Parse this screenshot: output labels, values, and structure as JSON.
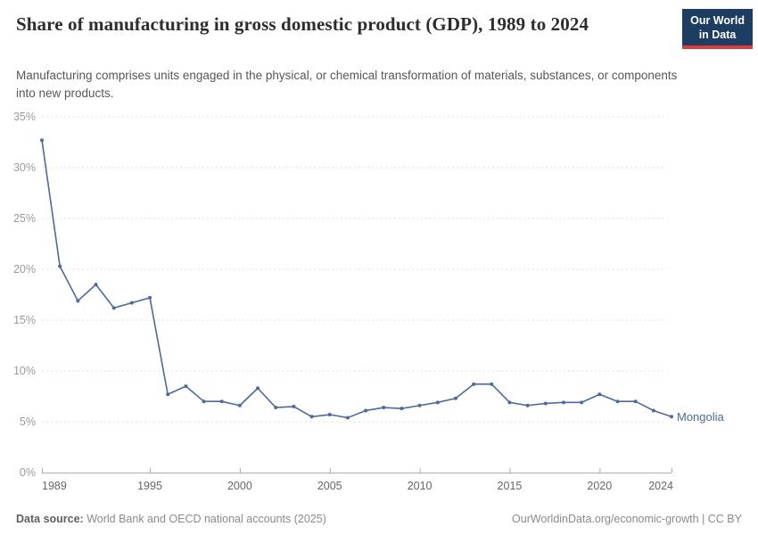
{
  "header": {
    "title": "Share of manufacturing in gross domestic product (GDP), 1989 to 2024",
    "subtitle": "Manufacturing comprises units engaged in the physical, or chemical transformation of materials, substances, or components into new products.",
    "logo_line1": "Our World",
    "logo_line2": "in Data"
  },
  "colors": {
    "line": "#4c6a9c",
    "grid": "#dddddd",
    "axis": "#ababab",
    "ytick": "#9a9a9a",
    "xtick": "#666666",
    "logo_bg": "#1d3d63",
    "logo_red": "#dc3e3e"
  },
  "chart_data": {
    "type": "line",
    "title": "Share of manufacturing in gross domestic product (GDP), 1989 to 2024",
    "xlabel": "",
    "ylabel": "",
    "xlim": [
      1989,
      2024
    ],
    "ylim": [
      0,
      35
    ],
    "grid": "horizontal-dashed",
    "legend_position": "end-of-line",
    "xticks": [
      1989,
      1995,
      2000,
      2005,
      2010,
      2015,
      2020,
      2024
    ],
    "yticks": [
      0,
      5,
      10,
      15,
      20,
      25,
      30,
      35
    ],
    "ytick_labels": [
      "0%",
      "5%",
      "10%",
      "15%",
      "20%",
      "25%",
      "30%",
      "35%"
    ],
    "series": [
      {
        "name": "Mongolia",
        "color": "#4c6a9c",
        "x": [
          1989,
          1990,
          1991,
          1992,
          1993,
          1994,
          1995,
          1996,
          1997,
          1998,
          1999,
          2000,
          2001,
          2002,
          2003,
          2004,
          2005,
          2006,
          2007,
          2008,
          2009,
          2010,
          2011,
          2012,
          2013,
          2014,
          2015,
          2016,
          2017,
          2018,
          2019,
          2020,
          2021,
          2022,
          2023,
          2024
        ],
        "values": [
          32.7,
          20.3,
          16.9,
          18.5,
          16.2,
          16.7,
          17.2,
          7.7,
          8.5,
          7.0,
          7.0,
          6.6,
          8.3,
          6.4,
          6.5,
          5.5,
          5.7,
          5.4,
          6.1,
          6.4,
          6.3,
          6.6,
          6.9,
          7.3,
          8.7,
          8.7,
          6.9,
          6.6,
          6.8,
          6.9,
          6.9,
          7.7,
          7.0,
          7.0,
          6.1,
          5.5
        ]
      }
    ]
  },
  "footer": {
    "data_source_label": "Data source:",
    "data_source_text": " World Bank and OECD national accounts (2025)",
    "credit": "OurWorldinData.org/economic-growth | CC BY"
  }
}
